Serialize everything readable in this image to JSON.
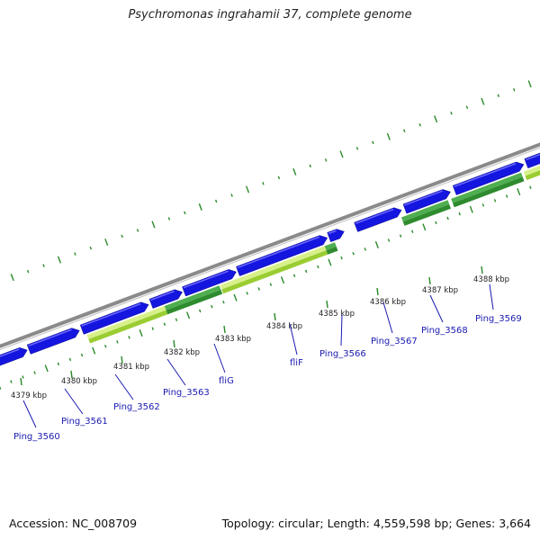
{
  "title": "Psychromonas ingrahamii 37, complete genome",
  "footer": {
    "accession": "Accession: NC_008709",
    "summary": "Topology: circular; Length: 4,559,598 bp; Genes: 3,664"
  },
  "colors": {
    "forward_gene": "#1515e0",
    "backbone": "#8a8a8a",
    "gc_dots": "#2a8a2a",
    "orf_dark_green": "#2e8b2e",
    "orf_light_green": "#9acd32",
    "label_blue": "#1a1ab0"
  },
  "kbp_ticks": [
    "4379 kbp",
    "4380 kbp",
    "4381 kbp",
    "4382 kbp",
    "4383 kbp",
    "4384 kbp",
    "4385 kbp",
    "4386 kbp",
    "4387 kbp",
    "4388 kbp"
  ],
  "gene_labels": [
    "Ping_3560",
    "Ping_3561",
    "Ping_3562",
    "Ping_3563",
    "fliG",
    "fliF",
    "Ping_3566",
    "Ping_3567",
    "Ping_3568",
    "Ping_3569"
  ]
}
